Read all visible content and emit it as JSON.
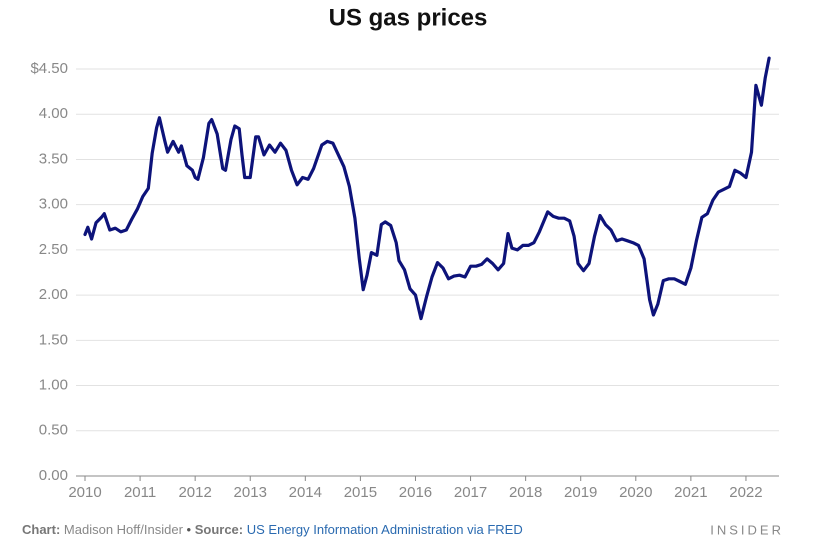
{
  "chart_data": {
    "type": "line",
    "title": "US gas prices",
    "x": [
      2010.0,
      2010.05,
      2010.12,
      2010.2,
      2010.3,
      2010.35,
      2010.45,
      2010.55,
      2010.65,
      2010.75,
      2010.85,
      2010.95,
      2011.05,
      2011.15,
      2011.22,
      2011.3,
      2011.35,
      2011.45,
      2011.5,
      2011.6,
      2011.7,
      2011.75,
      2011.85,
      2011.95,
      2012.0,
      2012.05,
      2012.15,
      2012.25,
      2012.3,
      2012.4,
      2012.5,
      2012.55,
      2012.65,
      2012.72,
      2012.8,
      2012.85,
      2012.9,
      2013.0,
      2013.1,
      2013.15,
      2013.25,
      2013.35,
      2013.45,
      2013.55,
      2013.65,
      2013.75,
      2013.85,
      2013.95,
      2014.05,
      2014.15,
      2014.3,
      2014.4,
      2014.5,
      2014.6,
      2014.7,
      2014.8,
      2014.9,
      2014.98,
      2015.05,
      2015.12,
      2015.2,
      2015.3,
      2015.38,
      2015.45,
      2015.55,
      2015.65,
      2015.7,
      2015.8,
      2015.9,
      2016.0,
      2016.1,
      2016.2,
      2016.3,
      2016.4,
      2016.5,
      2016.6,
      2016.7,
      2016.8,
      2016.9,
      2017.0,
      2017.1,
      2017.2,
      2017.3,
      2017.4,
      2017.5,
      2017.6,
      2017.68,
      2017.75,
      2017.85,
      2017.95,
      2018.05,
      2018.15,
      2018.25,
      2018.4,
      2018.5,
      2018.6,
      2018.7,
      2018.8,
      2018.88,
      2018.95,
      2019.05,
      2019.15,
      2019.25,
      2019.35,
      2019.45,
      2019.55,
      2019.65,
      2019.75,
      2019.85,
      2019.95,
      2020.05,
      2020.15,
      2020.25,
      2020.32,
      2020.4,
      2020.5,
      2020.6,
      2020.7,
      2020.8,
      2020.9,
      2021.0,
      2021.1,
      2021.2,
      2021.3,
      2021.4,
      2021.5,
      2021.6,
      2021.7,
      2021.8,
      2021.9,
      2022.0,
      2022.1,
      2022.18,
      2022.28,
      2022.35,
      2022.42
    ],
    "values": [
      2.67,
      2.75,
      2.62,
      2.8,
      2.86,
      2.9,
      2.72,
      2.74,
      2.7,
      2.72,
      2.84,
      2.95,
      3.09,
      3.18,
      3.57,
      3.85,
      3.96,
      3.7,
      3.58,
      3.7,
      3.58,
      3.65,
      3.43,
      3.38,
      3.3,
      3.28,
      3.52,
      3.9,
      3.94,
      3.78,
      3.4,
      3.38,
      3.72,
      3.87,
      3.84,
      3.55,
      3.3,
      3.3,
      3.75,
      3.75,
      3.55,
      3.66,
      3.58,
      3.68,
      3.6,
      3.38,
      3.22,
      3.3,
      3.28,
      3.4,
      3.66,
      3.7,
      3.68,
      3.55,
      3.42,
      3.2,
      2.85,
      2.4,
      2.06,
      2.22,
      2.47,
      2.44,
      2.78,
      2.81,
      2.77,
      2.58,
      2.38,
      2.28,
      2.07,
      2.0,
      1.74,
      1.98,
      2.2,
      2.36,
      2.3,
      2.18,
      2.21,
      2.22,
      2.2,
      2.32,
      2.32,
      2.34,
      2.4,
      2.35,
      2.28,
      2.35,
      2.68,
      2.52,
      2.5,
      2.55,
      2.55,
      2.58,
      2.7,
      2.92,
      2.87,
      2.85,
      2.85,
      2.82,
      2.65,
      2.35,
      2.27,
      2.35,
      2.65,
      2.88,
      2.78,
      2.72,
      2.6,
      2.62,
      2.6,
      2.58,
      2.55,
      2.4,
      1.95,
      1.78,
      1.9,
      2.16,
      2.18,
      2.18,
      2.15,
      2.12,
      2.3,
      2.6,
      2.86,
      2.9,
      3.05,
      3.14,
      3.17,
      3.2,
      3.38,
      3.35,
      3.3,
      3.58,
      4.32,
      4.1,
      4.4,
      4.62
    ],
    "color": "#0d137a",
    "xlim": [
      2010,
      2022.6
    ],
    "xticks": [
      2010,
      2011,
      2012,
      2013,
      2014,
      2015,
      2016,
      2017,
      2018,
      2019,
      2020,
      2021,
      2022
    ],
    "ylim": [
      0,
      4.5
    ],
    "yticks": [
      {
        "value": 0,
        "label": "0.00"
      },
      {
        "value": 0.5,
        "label": "0.50"
      },
      {
        "value": 1,
        "label": "1.00"
      },
      {
        "value": 1.5,
        "label": "1.50"
      },
      {
        "value": 2,
        "label": "2.00"
      },
      {
        "value": 2.5,
        "label": "2.50"
      },
      {
        "value": 3,
        "label": "3.00"
      },
      {
        "value": 3.5,
        "label": "3.50"
      },
      {
        "value": 4,
        "label": "4.00"
      },
      {
        "value": 4.5,
        "label": "$4.50"
      }
    ],
    "grid": true
  },
  "footer": {
    "chart_label": "Chart:",
    "chart_credit": "Madison Hoff/Insider",
    "separator": "•",
    "source_label": "Source:",
    "source": "US Energy Information Administration via FRED",
    "brand": "INSIDER"
  }
}
